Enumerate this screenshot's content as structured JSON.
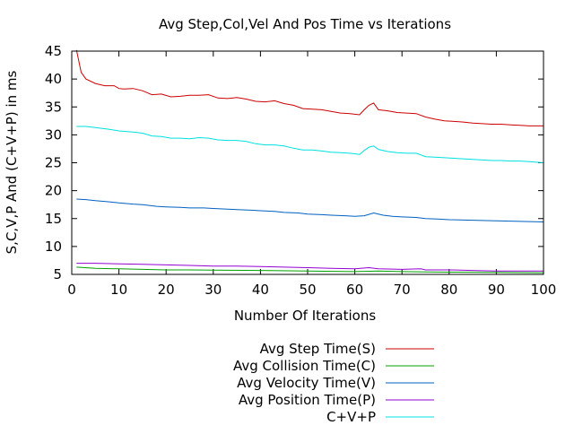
{
  "chart_data": {
    "type": "line",
    "title": "Avg Step,Col,Vel And Pos Time vs Iterations",
    "xlabel": "Number Of Iterations",
    "ylabel": "S,C,V,P And (C+V+P) in ms",
    "xlim": [
      0,
      100
    ],
    "ylim": [
      5,
      45
    ],
    "xticks": [
      0,
      10,
      20,
      30,
      40,
      50,
      60,
      70,
      80,
      90,
      100
    ],
    "yticks": [
      5,
      10,
      15,
      20,
      25,
      30,
      35,
      40,
      45
    ],
    "legend_position": "bottom-center",
    "grid": false,
    "series": [
      {
        "name": "Avg Step Time(S)",
        "color": "#cc0000",
        "x": [
          1,
          2,
          3,
          5,
          7,
          9,
          10,
          11,
          13,
          15,
          17,
          19,
          21,
          23,
          25,
          27,
          29,
          31,
          33,
          35,
          37,
          39,
          41,
          43,
          45,
          47,
          49,
          51,
          53,
          55,
          57,
          59,
          61,
          62,
          63,
          64,
          65,
          67,
          69,
          71,
          73,
          75,
          77,
          79,
          81,
          83,
          85,
          87,
          89,
          91,
          93,
          95,
          97,
          100
        ],
        "values": [
          45.2,
          41.2,
          40.0,
          39.2,
          38.8,
          38.8,
          38.3,
          38.2,
          38.3,
          37.9,
          37.2,
          37.3,
          36.8,
          36.9,
          37.1,
          37.1,
          37.2,
          36.6,
          36.5,
          36.7,
          36.4,
          36.0,
          35.9,
          36.1,
          35.6,
          35.3,
          34.7,
          34.6,
          34.5,
          34.2,
          33.9,
          33.8,
          33.6,
          34.5,
          35.3,
          35.7,
          34.5,
          34.3,
          34.0,
          33.9,
          33.8,
          33.2,
          32.8,
          32.5,
          32.4,
          32.3,
          32.1,
          32.0,
          31.9,
          31.9,
          31.8,
          31.7,
          31.6,
          31.6
        ]
      },
      {
        "name": "Avg Collision Time(C)",
        "color": "#00a000",
        "x": [
          1,
          5,
          10,
          15,
          20,
          25,
          30,
          40,
          50,
          60,
          65,
          70,
          75,
          80,
          90,
          100
        ],
        "values": [
          6.3,
          6.1,
          6.0,
          5.9,
          5.8,
          5.8,
          5.75,
          5.7,
          5.6,
          5.5,
          5.6,
          5.5,
          5.45,
          5.4,
          5.35,
          5.3
        ]
      },
      {
        "name": "Avg Velocity Time(V)",
        "color": "#0060c0",
        "x": [
          1,
          3,
          5,
          8,
          10,
          13,
          15,
          18,
          20,
          23,
          25,
          28,
          30,
          33,
          35,
          38,
          40,
          43,
          45,
          48,
          50,
          53,
          55,
          58,
          60,
          62,
          64,
          66,
          68,
          70,
          73,
          75,
          78,
          80,
          85,
          90,
          95,
          100
        ],
        "values": [
          18.5,
          18.4,
          18.2,
          18.0,
          17.8,
          17.6,
          17.5,
          17.2,
          17.1,
          17.0,
          16.9,
          16.9,
          16.8,
          16.7,
          16.6,
          16.5,
          16.4,
          16.3,
          16.1,
          16.0,
          15.8,
          15.7,
          15.6,
          15.5,
          15.4,
          15.5,
          16.0,
          15.6,
          15.4,
          15.3,
          15.2,
          15.0,
          14.9,
          14.8,
          14.7,
          14.6,
          14.5,
          14.4
        ]
      },
      {
        "name": "Avg Position Time(P)",
        "color": "#9400d3",
        "x": [
          1,
          5,
          10,
          15,
          20,
          25,
          30,
          35,
          40,
          45,
          50,
          55,
          60,
          63,
          65,
          70,
          74,
          75,
          80,
          85,
          90,
          95,
          100
        ],
        "values": [
          7.0,
          7.0,
          6.9,
          6.8,
          6.7,
          6.6,
          6.5,
          6.5,
          6.4,
          6.3,
          6.2,
          6.1,
          6.0,
          6.2,
          6.0,
          5.9,
          6.0,
          5.8,
          5.8,
          5.7,
          5.6,
          5.6,
          5.6
        ]
      },
      {
        "name": "C+V+P",
        "color": "#00e0e0",
        "x": [
          1,
          3,
          5,
          8,
          10,
          13,
          15,
          17,
          19,
          21,
          23,
          25,
          27,
          29,
          31,
          33,
          35,
          37,
          39,
          41,
          43,
          45,
          47,
          49,
          51,
          53,
          55,
          57,
          59,
          61,
          62,
          63,
          64,
          65,
          67,
          69,
          71,
          73,
          75,
          77,
          79,
          81,
          83,
          85,
          87,
          89,
          91,
          93,
          95,
          97,
          100
        ],
        "values": [
          31.5,
          31.5,
          31.3,
          31.0,
          30.7,
          30.5,
          30.3,
          29.8,
          29.7,
          29.4,
          29.4,
          29.3,
          29.5,
          29.4,
          29.1,
          29.0,
          29.0,
          28.8,
          28.4,
          28.2,
          28.2,
          28.0,
          27.6,
          27.3,
          27.3,
          27.1,
          26.9,
          26.8,
          26.7,
          26.5,
          27.2,
          27.8,
          28.0,
          27.4,
          27.0,
          26.8,
          26.7,
          26.7,
          26.1,
          26.0,
          25.9,
          25.8,
          25.7,
          25.6,
          25.5,
          25.4,
          25.4,
          25.3,
          25.3,
          25.2,
          25.0
        ]
      }
    ]
  }
}
